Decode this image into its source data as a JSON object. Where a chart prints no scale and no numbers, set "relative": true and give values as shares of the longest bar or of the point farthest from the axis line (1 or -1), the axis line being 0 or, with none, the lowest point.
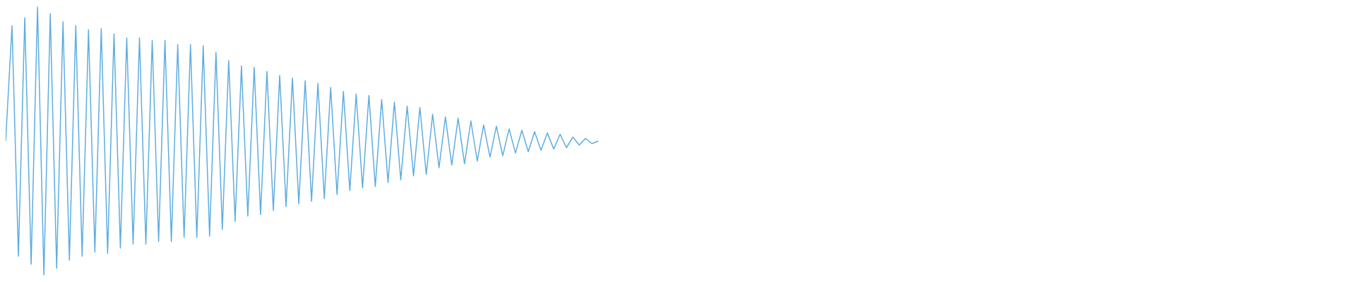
{
  "chart_data": {
    "type": "line",
    "relative": true,
    "color": "#5dade2",
    "categories": [
      null,
      null,
      null,
      null,
      null,
      null,
      null,
      null,
      null,
      null,
      null,
      null,
      null,
      null,
      null,
      null,
      null,
      null,
      null,
      null,
      null,
      null,
      null,
      null,
      null,
      null,
      null,
      null,
      null,
      null,
      null,
      null,
      null,
      null,
      null,
      null,
      null,
      null,
      null,
      null,
      null,
      null,
      null,
      null,
      null,
      null,
      null,
      null,
      null,
      null,
      null,
      null,
      null,
      null,
      null,
      null,
      null,
      null,
      null,
      null,
      null,
      null,
      null,
      null,
      null,
      null,
      null,
      null,
      null,
      null,
      null,
      null,
      null,
      null,
      null,
      null,
      null,
      null,
      null,
      null,
      null,
      null,
      null,
      null,
      null,
      null,
      null,
      null,
      null,
      null,
      null,
      null,
      null,
      null,
      null,
      null,
      null,
      null,
      null,
      null,
      null,
      null,
      null,
      null,
      null,
      null,
      null,
      null,
      null,
      null,
      null,
      null,
      null,
      null,
      null,
      null,
      null,
      null,
      null,
      null,
      null,
      null,
      null,
      null,
      null,
      null,
      null,
      null,
      null,
      null,
      null,
      null,
      null,
      null,
      null,
      null,
      null,
      null,
      null,
      null,
      null,
      null,
      null,
      null,
      null,
      null,
      null,
      null,
      null,
      null,
      null,
      null,
      null,
      null,
      null,
      null,
      null,
      null,
      null,
      null,
      null,
      null,
      null,
      null,
      null,
      null,
      null,
      null,
      null,
      null,
      null,
      null,
      null,
      null,
      null,
      null,
      null,
      null,
      null,
      null,
      null,
      null,
      null,
      null,
      null,
      null,
      null,
      null,
      null,
      null,
      null,
      null,
      null,
      null,
      null,
      null,
      null,
      null,
      null,
      null,
      null,
      null,
      null,
      null,
      null,
      null,
      null,
      null,
      null,
      null,
      null,
      null
    ],
    "values": [
      0.5,
      0.93,
      0.07,
      0.96,
      0.04,
      1,
      0,
      0.975,
      0.025,
      0.945,
      0.055,
      0.93,
      0.07,
      0.915,
      0.085,
      0.92,
      0.08,
      0.9,
      0.1,
      0.885,
      0.115,
      0.885,
      0.115,
      0.875,
      0.125,
      0.875,
      0.125,
      0.86,
      0.14,
      0.86,
      0.14,
      0.855,
      0.145,
      0.83,
      0.17,
      0.8,
      0.2,
      0.78,
      0.22,
      0.775,
      0.225,
      0.76,
      0.24,
      0.745,
      0.255,
      0.735,
      0.265,
      0.725,
      0.275,
      0.715,
      0.285,
      0.7,
      0.3,
      0.685,
      0.315,
      0.675,
      0.325,
      0.67,
      0.33,
      0.655,
      0.345,
      0.645,
      0.355,
      0.63,
      0.37,
      0.625,
      0.375,
      0.6,
      0.4,
      0.59,
      0.41,
      0.585,
      0.415,
      0.575,
      0.425,
      0.56,
      0.44,
      0.555,
      0.445,
      0.545,
      0.455,
      0.54,
      0.46,
      0.535,
      0.465,
      0.53,
      0.47,
      0.525,
      0.475,
      0.515,
      0.485,
      0.51,
      0.49,
      0.5,
      null,
      null,
      null,
      null,
      null,
      null,
      null,
      null,
      null,
      null,
      null,
      null,
      null,
      null,
      null,
      null,
      null,
      null,
      null,
      null,
      null,
      null,
      null,
      null,
      null,
      null,
      null,
      null,
      null,
      null,
      null,
      null,
      null,
      null,
      null,
      null,
      null,
      null,
      null,
      null,
      null,
      null,
      null,
      null,
      null,
      null,
      null,
      null,
      null,
      null,
      null,
      null,
      null,
      null,
      null,
      null,
      null,
      null,
      null,
      null,
      null,
      null,
      null,
      null,
      null,
      null,
      null,
      null,
      null,
      null,
      null,
      null,
      null,
      null,
      null,
      null,
      null,
      null,
      null,
      null,
      null,
      null,
      null,
      null,
      null,
      null,
      null,
      null,
      null,
      null,
      null,
      null,
      null,
      null,
      null,
      null,
      null,
      null,
      null,
      null,
      null,
      null,
      null,
      null,
      null,
      null,
      null,
      null,
      null,
      null,
      null,
      null,
      null,
      null,
      null,
      null,
      null,
      null
    ]
  }
}
